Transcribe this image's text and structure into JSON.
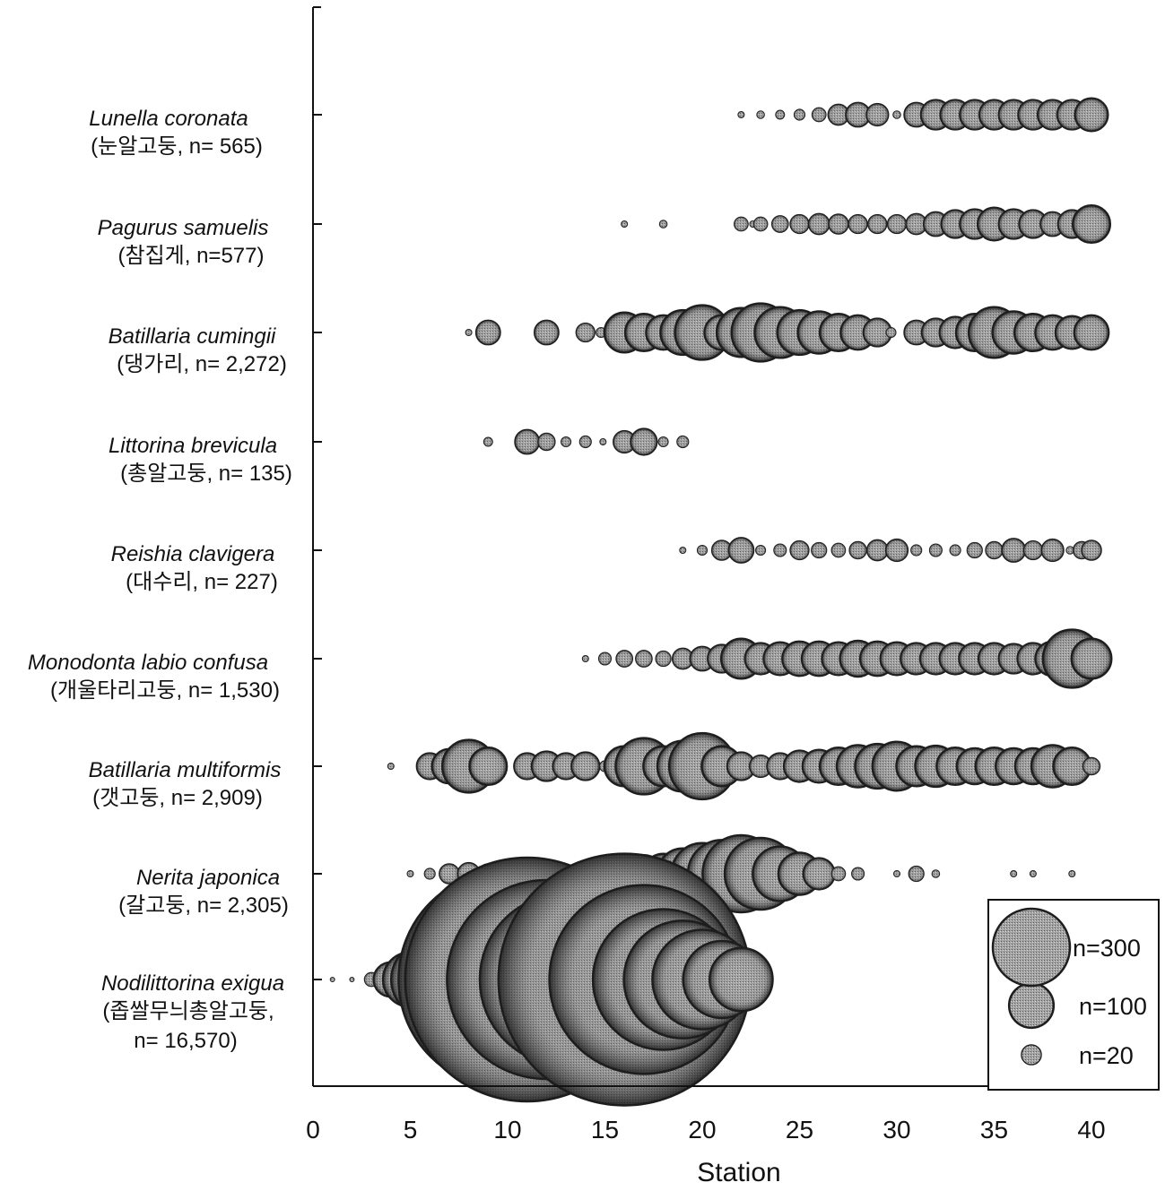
{
  "chart_data": {
    "type": "scatter",
    "subtype": "bubble",
    "xlabel": "Station",
    "xlim": [
      0,
      42
    ],
    "xticks": [
      "0",
      "5",
      "10",
      "15",
      "20",
      "25",
      "30",
      "35",
      "40"
    ],
    "grid": false,
    "legend_position": "bottom-right",
    "legend": [
      {
        "label": "n=300",
        "n": 300
      },
      {
        "label": "n=100",
        "n": 100
      },
      {
        "label": "n=20",
        "n": 20
      }
    ],
    "colors": {
      "bubble_fill": "#9a9a9a",
      "bubble_edge": "#1e1e1e",
      "axis": "#111111"
    },
    "series": [
      {
        "name": "Lunella coronata",
        "label2": "(눈알고둥, n= 565)",
        "points": [
          [
            22,
            2
          ],
          [
            23,
            3
          ],
          [
            24,
            4
          ],
          [
            25,
            6
          ],
          [
            26,
            10
          ],
          [
            27,
            22
          ],
          [
            28,
            30
          ],
          [
            29,
            25
          ],
          [
            30,
            3
          ],
          [
            31,
            30
          ],
          [
            32,
            45
          ],
          [
            33,
            45
          ],
          [
            34,
            45
          ],
          [
            35,
            45
          ],
          [
            36,
            45
          ],
          [
            37,
            45
          ],
          [
            38,
            45
          ],
          [
            39,
            45
          ],
          [
            40,
            55
          ]
        ]
      },
      {
        "name": "Pagurus samuelis",
        "label2": "(참집게, n=577)",
        "points": [
          [
            16,
            2
          ],
          [
            18,
            3
          ],
          [
            22,
            10
          ],
          [
            22.6,
            2
          ],
          [
            23,
            10
          ],
          [
            24,
            14
          ],
          [
            25,
            18
          ],
          [
            26,
            22
          ],
          [
            27,
            20
          ],
          [
            28,
            18
          ],
          [
            29,
            18
          ],
          [
            30,
            18
          ],
          [
            31,
            22
          ],
          [
            32,
            30
          ],
          [
            33,
            40
          ],
          [
            34,
            45
          ],
          [
            35,
            55
          ],
          [
            36,
            45
          ],
          [
            37,
            40
          ],
          [
            38,
            30
          ],
          [
            39,
            40
          ],
          [
            40,
            70
          ]
        ]
      },
      {
        "name": "Batillaria cumingii",
        "label2": "(댕가리, n= 2,272)",
        "points": [
          [
            8,
            2
          ],
          [
            9,
            30
          ],
          [
            12,
            30
          ],
          [
            14,
            18
          ],
          [
            14.8,
            5
          ],
          [
            16,
            80
          ],
          [
            17,
            70
          ],
          [
            18,
            60
          ],
          [
            19,
            100
          ],
          [
            20,
            150
          ],
          [
            21,
            60
          ],
          [
            22,
            120
          ],
          [
            23,
            170
          ],
          [
            24,
            130
          ],
          [
            25,
            100
          ],
          [
            26,
            90
          ],
          [
            27,
            70
          ],
          [
            28,
            60
          ],
          [
            29,
            40
          ],
          [
            29.7,
            5
          ],
          [
            31,
            30
          ],
          [
            32,
            40
          ],
          [
            33,
            50
          ],
          [
            34,
            70
          ],
          [
            35,
            130
          ],
          [
            36,
            90
          ],
          [
            37,
            70
          ],
          [
            38,
            60
          ],
          [
            39,
            55
          ],
          [
            40,
            60
          ]
        ]
      },
      {
        "name": "Littorina brevicula",
        "label2": "(총알고둥, n= 135)",
        "points": [
          [
            9,
            4
          ],
          [
            11,
            30
          ],
          [
            12,
            15
          ],
          [
            13,
            5
          ],
          [
            14,
            7
          ],
          [
            14.9,
            2
          ],
          [
            16,
            25
          ],
          [
            17,
            35
          ],
          [
            18,
            5
          ],
          [
            19,
            7
          ]
        ]
      },
      {
        "name": "Reishia clavigera",
        "label2": "(대수리, n= 227)",
        "points": [
          [
            19,
            2
          ],
          [
            20,
            5
          ],
          [
            21,
            20
          ],
          [
            22,
            32
          ],
          [
            23,
            5
          ],
          [
            24,
            8
          ],
          [
            25,
            18
          ],
          [
            26,
            12
          ],
          [
            27,
            10
          ],
          [
            28,
            15
          ],
          [
            29,
            22
          ],
          [
            30,
            25
          ],
          [
            31,
            6
          ],
          [
            32,
            8
          ],
          [
            33,
            6
          ],
          [
            34,
            12
          ],
          [
            35,
            15
          ],
          [
            36,
            28
          ],
          [
            37,
            18
          ],
          [
            38,
            25
          ],
          [
            38.9,
            3
          ],
          [
            39.5,
            15
          ],
          [
            40,
            20
          ]
        ]
      },
      {
        "name": "Monodonta labio confusa",
        "label2": "(개울타리고둥, n= 1,530)",
        "points": [
          [
            14,
            2
          ],
          [
            15,
            8
          ],
          [
            16,
            14
          ],
          [
            17,
            14
          ],
          [
            18,
            12
          ],
          [
            19,
            22
          ],
          [
            20,
            30
          ],
          [
            21,
            40
          ],
          [
            22,
            80
          ],
          [
            23,
            50
          ],
          [
            24,
            55
          ],
          [
            25,
            60
          ],
          [
            26,
            60
          ],
          [
            27,
            55
          ],
          [
            28,
            65
          ],
          [
            29,
            60
          ],
          [
            30,
            55
          ],
          [
            31,
            50
          ],
          [
            32,
            50
          ],
          [
            33,
            50
          ],
          [
            34,
            50
          ],
          [
            35,
            50
          ],
          [
            36,
            45
          ],
          [
            37,
            50
          ],
          [
            38,
            60
          ],
          [
            39,
            170
          ],
          [
            40,
            80
          ]
        ]
      },
      {
        "name": "Batillaria multiformis",
        "label2": "(갯고둥, n= 2,909)",
        "points": [
          [
            4,
            2
          ],
          [
            6,
            35
          ],
          [
            7,
            60
          ],
          [
            8,
            140
          ],
          [
            9,
            70
          ],
          [
            11,
            35
          ],
          [
            12,
            45
          ],
          [
            13,
            35
          ],
          [
            14,
            40
          ],
          [
            15,
            6
          ],
          [
            16,
            80
          ],
          [
            17,
            160
          ],
          [
            18,
            80
          ],
          [
            19,
            130
          ],
          [
            20,
            220
          ],
          [
            21,
            80
          ],
          [
            22,
            40
          ],
          [
            23,
            25
          ],
          [
            24,
            35
          ],
          [
            25,
            50
          ],
          [
            26,
            55
          ],
          [
            27,
            70
          ],
          [
            28,
            90
          ],
          [
            29,
            100
          ],
          [
            30,
            120
          ],
          [
            31,
            80
          ],
          [
            32,
            85
          ],
          [
            33,
            70
          ],
          [
            34,
            65
          ],
          [
            35,
            70
          ],
          [
            36,
            65
          ],
          [
            37,
            65
          ],
          [
            38,
            90
          ],
          [
            39,
            70
          ],
          [
            40,
            15
          ]
        ]
      },
      {
        "name": "Nerita japonica",
        "label2": "(갈고둥, n= 2,305)",
        "points": [
          [
            5,
            2
          ],
          [
            6,
            6
          ],
          [
            7,
            20
          ],
          [
            8,
            25
          ],
          [
            9,
            20
          ],
          [
            10,
            10
          ],
          [
            11,
            15
          ],
          [
            12,
            15
          ],
          [
            13,
            15
          ],
          [
            14,
            20
          ],
          [
            15,
            55
          ],
          [
            16,
            60
          ],
          [
            17,
            70
          ],
          [
            18,
            80
          ],
          [
            19,
            130
          ],
          [
            20,
            190
          ],
          [
            21,
            230
          ],
          [
            22,
            300
          ],
          [
            23,
            260
          ],
          [
            24,
            150
          ],
          [
            25,
            90
          ],
          [
            26,
            50
          ],
          [
            27,
            10
          ],
          [
            28,
            8
          ],
          [
            30,
            2
          ],
          [
            31,
            12
          ],
          [
            32,
            3
          ],
          [
            36,
            2
          ],
          [
            37,
            2
          ],
          [
            39,
            2
          ]
        ]
      },
      {
        "name": "Nodilittorina exigua",
        "label2": "(좁쌀무늬총알고둥,",
        "label3": "n= 16,570)",
        "points": [
          [
            1,
            1
          ],
          [
            2,
            1
          ],
          [
            3,
            10
          ],
          [
            4,
            60
          ],
          [
            5,
            150
          ],
          [
            6,
            300
          ],
          [
            7,
            500
          ],
          [
            8,
            900
          ],
          [
            9,
            1400
          ],
          [
            10,
            2400
          ],
          [
            11,
            3000
          ],
          [
            12,
            2000
          ],
          [
            13,
            1500
          ],
          [
            14,
            1200
          ],
          [
            15,
            2200
          ],
          [
            16,
            3200
          ],
          [
            17,
            1800
          ],
          [
            18,
            1000
          ],
          [
            19,
            700
          ],
          [
            20,
            500
          ],
          [
            21,
            300
          ],
          [
            22,
            200
          ]
        ]
      }
    ]
  }
}
